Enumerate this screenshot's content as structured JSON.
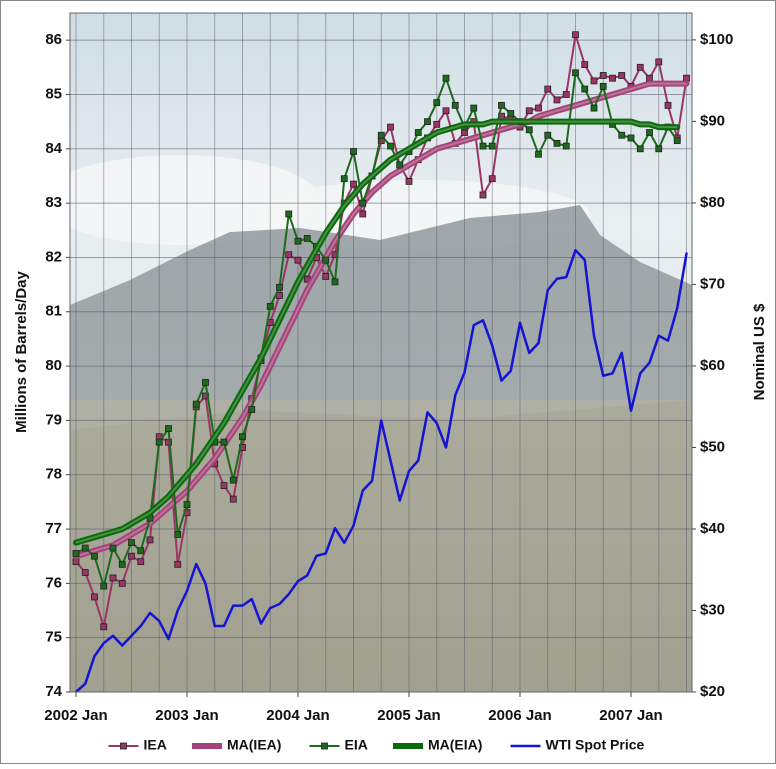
{
  "chart_data": {
    "type": "line",
    "categories": [
      "2002 Jan",
      null,
      null,
      null,
      null,
      null,
      null,
      null,
      null,
      null,
      null,
      null,
      "2003 Jan",
      null,
      null,
      null,
      null,
      null,
      null,
      null,
      null,
      null,
      null,
      null,
      "2004 Jan",
      null,
      null,
      null,
      null,
      null,
      null,
      null,
      null,
      null,
      null,
      null,
      "2005 Jan",
      null,
      null,
      null,
      null,
      null,
      null,
      null,
      null,
      null,
      null,
      null,
      "2006 Jan",
      null,
      null,
      null,
      null,
      null,
      null,
      null,
      null,
      null,
      null,
      null,
      "2007 Jan",
      null,
      null,
      null,
      null,
      null,
      null
    ],
    "y_label": "Millions of Barrels/Day",
    "y2_label": "Nominal US $",
    "ylim": [
      74,
      86.5
    ],
    "yticks": [
      74,
      75,
      76,
      77,
      78,
      79,
      80,
      81,
      82,
      83,
      84,
      85,
      86
    ],
    "y2lim": [
      20,
      103.3
    ],
    "y2ticks": [
      {
        "value": 20,
        "label": "$20"
      },
      {
        "value": 30,
        "label": "$30"
      },
      {
        "value": 40,
        "label": "$40"
      },
      {
        "value": 50,
        "label": "$50"
      },
      {
        "value": 60,
        "label": "$60"
      },
      {
        "value": 70,
        "label": "$70"
      },
      {
        "value": 80,
        "label": "$80"
      },
      {
        "value": 90,
        "label": "$90"
      },
      {
        "value": 100,
        "label": "$100"
      }
    ],
    "grid": true,
    "legend": "bottom",
    "series": [
      {
        "name": "IEA",
        "color": "#9a3565",
        "marker": "square",
        "line_width": 2,
        "values": [
          76.4,
          76.2,
          75.75,
          75.2,
          76.1,
          76.0,
          76.5,
          76.4,
          76.8,
          78.7,
          78.6,
          76.35,
          77.3,
          79.25,
          79.45,
          78.2,
          77.8,
          77.55,
          78.5,
          79.4,
          80.1,
          80.8,
          81.3,
          82.05,
          81.95,
          81.6,
          82.0,
          81.65,
          82.05,
          83.0,
          83.35,
          82.8,
          83.5,
          84.15,
          84.4,
          83.7,
          83.4,
          83.8,
          84.2,
          84.45,
          84.7,
          84.1,
          84.3,
          84.5,
          83.15,
          83.45,
          84.6,
          84.55,
          84.4,
          84.7,
          84.75,
          85.1,
          84.9,
          85.0,
          86.1,
          85.55,
          85.25,
          85.35,
          85.3,
          85.35,
          85.15,
          85.5,
          85.3,
          85.6,
          84.8,
          84.2,
          85.3
        ]
      },
      {
        "name": "MA(IEA)",
        "color": "#a5447a",
        "line_width": 6,
        "values": [
          76.5,
          76.55,
          76.6,
          76.65,
          76.7,
          76.8,
          76.9,
          77.0,
          77.1,
          77.25,
          77.4,
          77.55,
          77.7,
          77.9,
          78.1,
          78.3,
          78.55,
          78.8,
          79.05,
          79.35,
          79.65,
          80.0,
          80.35,
          80.7,
          81.05,
          81.4,
          81.7,
          82.0,
          82.3,
          82.55,
          82.8,
          83.0,
          83.2,
          83.35,
          83.5,
          83.6,
          83.7,
          83.8,
          83.9,
          84.0,
          84.05,
          84.1,
          84.15,
          84.2,
          84.25,
          84.3,
          84.35,
          84.4,
          84.45,
          84.5,
          84.6,
          84.65,
          84.7,
          84.75,
          84.8,
          84.85,
          84.9,
          84.95,
          85.0,
          85.05,
          85.1,
          85.15,
          85.2,
          85.2,
          85.2,
          85.2,
          85.2
        ]
      },
      {
        "name": "EIA",
        "color": "#1d6a1d",
        "marker": "square",
        "line_width": 2,
        "values": [
          76.55,
          76.65,
          76.5,
          75.95,
          76.65,
          76.35,
          76.75,
          76.6,
          77.2,
          78.6,
          78.85,
          76.9,
          77.45,
          79.3,
          79.7,
          78.6,
          78.6,
          77.9,
          78.7,
          79.2,
          80.15,
          81.1,
          81.45,
          82.8,
          82.3,
          82.35,
          82.2,
          81.95,
          81.55,
          83.45,
          83.95,
          83.0,
          83.5,
          84.25,
          84.05,
          83.7,
          83.95,
          84.3,
          84.5,
          84.85,
          85.3,
          84.8,
          84.4,
          84.75,
          84.05,
          84.05,
          84.8,
          84.65,
          84.5,
          84.35,
          83.9,
          84.25,
          84.1,
          84.05,
          85.4,
          85.1,
          84.75,
          85.15,
          84.45,
          84.25,
          84.2,
          84.0,
          84.3,
          84.0,
          84.4,
          84.15,
          null
        ]
      },
      {
        "name": "MA(EIA)",
        "color": "#0b6a0b",
        "line_width": 6,
        "values": [
          76.75,
          76.8,
          76.85,
          76.9,
          76.95,
          77.0,
          77.1,
          77.2,
          77.3,
          77.45,
          77.6,
          77.8,
          78.0,
          78.2,
          78.45,
          78.7,
          78.95,
          79.25,
          79.55,
          79.85,
          80.15,
          80.5,
          80.85,
          81.2,
          81.55,
          81.85,
          82.15,
          82.45,
          82.7,
          82.95,
          83.15,
          83.35,
          83.5,
          83.65,
          83.8,
          83.9,
          84.0,
          84.1,
          84.2,
          84.3,
          84.35,
          84.4,
          84.45,
          84.45,
          84.45,
          84.5,
          84.5,
          84.5,
          84.5,
          84.5,
          84.5,
          84.5,
          84.5,
          84.5,
          84.5,
          84.5,
          84.5,
          84.5,
          84.5,
          84.5,
          84.5,
          84.45,
          84.45,
          84.4,
          84.4,
          84.4,
          null
        ]
      },
      {
        "name": "WTI Spot Price",
        "color": "#1414d2",
        "axis": "y2",
        "line_width": 2.5,
        "values": [
          20,
          21,
          24.4,
          26,
          26.9,
          25.7,
          26.9,
          28.1,
          29.7,
          28.7,
          26.5,
          30,
          32.4,
          35.7,
          33.3,
          28.1,
          28.1,
          30.6,
          30.6,
          31.4,
          28.4,
          30.3,
          30.8,
          32,
          33.6,
          34.3,
          36.7,
          37,
          40.1,
          38.3,
          40.4,
          44.7,
          45.9,
          53.3,
          48.4,
          43.5,
          47.1,
          48.4,
          54.3,
          53,
          50,
          56.4,
          59.2,
          65,
          65.6,
          62.5,
          58.2,
          59.4,
          65.3,
          61.6,
          62.8,
          69.3,
          70.7,
          70.9,
          74.2,
          73,
          63.7,
          58.8,
          59.1,
          61.6,
          54.5,
          59.1,
          60.4,
          63.7,
          63.1,
          67.1,
          73.8
        ]
      }
    ]
  }
}
